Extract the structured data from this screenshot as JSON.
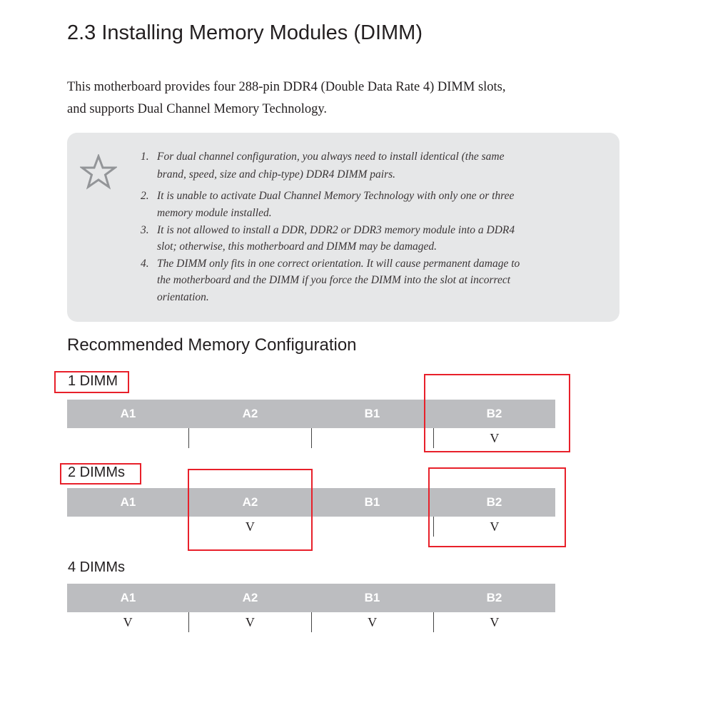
{
  "title": "2.3  Installing Memory Modules (DIMM)",
  "intro": [
    "This motherboard provides four 288-pin DDR4 (Double Data Rate 4) DIMM slots,",
    "and supports Dual Channel Memory Technology."
  ],
  "note": {
    "icon": "star-icon",
    "items": [
      {
        "num": "1.",
        "lines": [
          "For dual channel configuration, you always need to install identical (the same",
          "brand, speed, size and chip-type) DDR4 DIMM pairs."
        ]
      },
      {
        "num": "2.",
        "lines": [
          "It is unable to activate Dual Channel Memory Technology with only one or three",
          "memory module installed."
        ]
      },
      {
        "num": "3.",
        "lines": [
          "It is not allowed to install a DDR, DDR2 or DDR3 memory module into a DDR4",
          "slot; otherwise, this motherboard and DIMM may be damaged."
        ]
      },
      {
        "num": "4.",
        "lines": [
          "The DIMM only fits in one correct orientation. It will cause permanent damage to",
          "the motherboard and the DIMM if you force the DIMM into the slot at incorrect",
          "orientation."
        ]
      }
    ]
  },
  "config": {
    "heading": "Recommended Memory Configuration",
    "slots": [
      "A1",
      "A2",
      "B1",
      "B2"
    ],
    "tables": [
      {
        "label": "1 DIMM",
        "cells": [
          "",
          "",
          "",
          "V"
        ]
      },
      {
        "label": "2 DIMMs",
        "cells": [
          "",
          "V",
          "",
          "V"
        ]
      },
      {
        "label": "4 DIMMs",
        "cells": [
          "V",
          "V",
          "V",
          "V"
        ]
      }
    ]
  },
  "highlight_color": "#e8202a"
}
